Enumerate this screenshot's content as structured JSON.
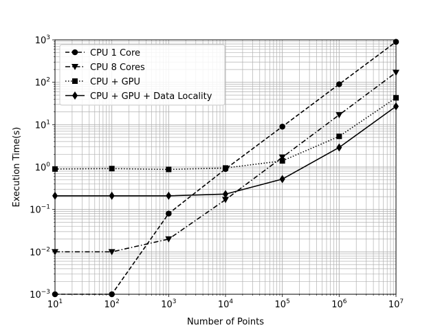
{
  "chart_data": {
    "type": "line",
    "xlabel": "Number of Points",
    "ylabel": "Execution Time(s)",
    "xscale": "log",
    "yscale": "log",
    "xlim": [
      10,
      10000000
    ],
    "ylim": [
      0.001,
      1000
    ],
    "grid": true,
    "legend_position": "top-left",
    "x": [
      10,
      100,
      1000,
      10000,
      100000,
      1000000,
      10000000
    ],
    "x_tick_labels": [
      {
        "base": "10",
        "exp": "1"
      },
      {
        "base": "10",
        "exp": "2"
      },
      {
        "base": "10",
        "exp": "3"
      },
      {
        "base": "10",
        "exp": "4"
      },
      {
        "base": "10",
        "exp": "5"
      },
      {
        "base": "10",
        "exp": "6"
      },
      {
        "base": "10",
        "exp": "7"
      }
    ],
    "y_tick_labels": [
      {
        "base": "10",
        "exp": "−3"
      },
      {
        "base": "10",
        "exp": "−2"
      },
      {
        "base": "10",
        "exp": "−1"
      },
      {
        "base": "10",
        "exp": "0"
      },
      {
        "base": "10",
        "exp": "1"
      },
      {
        "base": "10",
        "exp": "2"
      },
      {
        "base": "10",
        "exp": "3"
      }
    ],
    "series": [
      {
        "name": "CPU 1 Core",
        "values": [
          0.001,
          0.001,
          0.08,
          0.9,
          9,
          90,
          900
        ],
        "marker": "circle",
        "dash": "dashed",
        "color": "#000000"
      },
      {
        "name": "CPU 8 Cores",
        "values": [
          0.01,
          0.01,
          0.02,
          0.17,
          1.7,
          17,
          170
        ],
        "marker": "triangle-down",
        "dash": "dashdot",
        "color": "#000000"
      },
      {
        "name": "CPU + GPU",
        "values": [
          0.9,
          0.92,
          0.88,
          0.95,
          1.4,
          5.3,
          43
        ],
        "marker": "square",
        "dash": "dotted",
        "color": "#000000"
      },
      {
        "name": "CPU + GPU + Data Locality",
        "values": [
          0.21,
          0.21,
          0.21,
          0.23,
          0.52,
          2.9,
          27
        ],
        "marker": "diamond",
        "dash": "solid",
        "color": "#000000"
      }
    ]
  }
}
